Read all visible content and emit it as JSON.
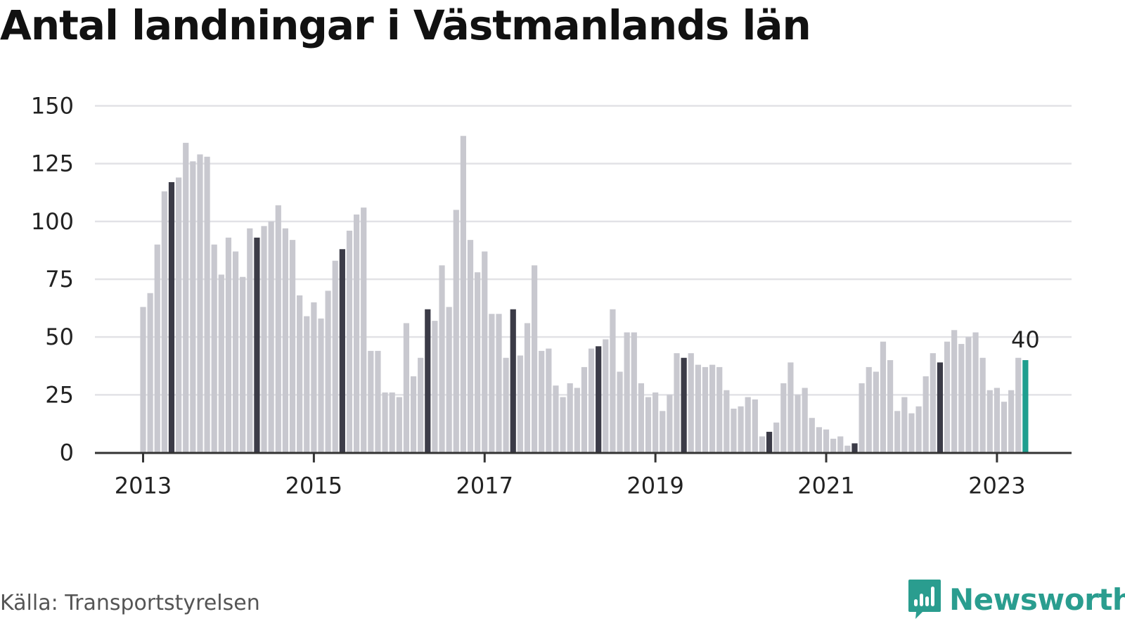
{
  "title": "Antal landningar i Västmanlands län",
  "source": "Källa: Transportstyrelsen",
  "brand": {
    "name": "Newsworthy",
    "icon": "bar-chart-bubble-icon",
    "color": "#2a9d8f"
  },
  "chart_data": {
    "type": "bar",
    "title": "Antal landningar i Västmanlands län",
    "xlabel": "",
    "ylabel": "",
    "ylim": [
      0,
      150
    ],
    "yticks": [
      0,
      25,
      50,
      75,
      100,
      125,
      150
    ],
    "x_tick_labels": [
      "2013",
      "2015",
      "2017",
      "2019",
      "2021",
      "2023"
    ],
    "grid": "horizontal",
    "colors": {
      "default": "#c8c8cf",
      "highlight": "#3b3b47",
      "latest": "#1f9e8f",
      "grid": "#e2e2e6",
      "axis": "#333333"
    },
    "period_start": "2013-01",
    "frequency": "monthly",
    "highlight_months": "May each year",
    "latest_label": "40",
    "values": [
      63,
      69,
      90,
      113,
      117,
      119,
      134,
      126,
      129,
      128,
      90,
      77,
      93,
      87,
      76,
      97,
      93,
      98,
      100,
      107,
      97,
      92,
      68,
      59,
      65,
      58,
      70,
      83,
      88,
      96,
      103,
      106,
      44,
      44,
      26,
      26,
      24,
      56,
      33,
      41,
      62,
      57,
      81,
      63,
      105,
      137,
      92,
      78,
      87,
      60,
      60,
      41,
      62,
      42,
      56,
      81,
      44,
      45,
      29,
      24,
      30,
      28,
      37,
      45,
      46,
      49,
      62,
      35,
      52,
      52,
      30,
      24,
      26,
      18,
      25,
      43,
      41,
      43,
      38,
      37,
      38,
      37,
      27,
      19,
      20,
      24,
      23,
      7,
      9,
      13,
      30,
      39,
      25,
      28,
      15,
      11,
      10,
      6,
      7,
      3,
      4,
      30,
      37,
      35,
      48,
      40,
      18,
      24,
      17,
      20,
      33,
      43,
      39,
      48,
      53,
      47,
      50,
      52,
      41,
      27,
      28,
      22,
      27,
      41,
      40
    ]
  }
}
